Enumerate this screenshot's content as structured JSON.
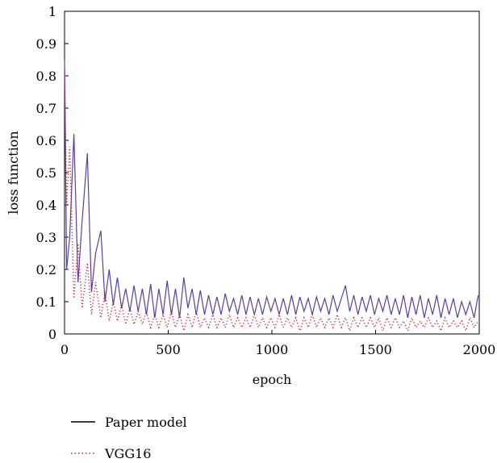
{
  "chart_data": {
    "type": "line",
    "xlabel": "epoch",
    "ylabel": "loss function",
    "xlim": [
      0,
      2000
    ],
    "ylim": [
      0,
      1
    ],
    "x_ticks": [
      "0",
      "500",
      "1000",
      "1500",
      "2000"
    ],
    "y_ticks": [
      "0",
      "0.1",
      "0.2",
      "0.3",
      "0.4",
      "0.5",
      "0.6",
      "0.7",
      "0.8",
      "0.9",
      "1"
    ],
    "grid": false,
    "legend_position": "bottom-left",
    "series": [
      {
        "name": "Paper model",
        "color": "#5b3f9a",
        "style": "solid",
        "x": [
          0,
          10,
          25,
          45,
          65,
          85,
          110,
          130,
          150,
          175,
          195,
          215,
          235,
          255,
          275,
          295,
          315,
          335,
          355,
          375,
          395,
          415,
          435,
          455,
          475,
          495,
          515,
          535,
          555,
          575,
          595,
          615,
          635,
          655,
          675,
          695,
          715,
          735,
          755,
          775,
          795,
          815,
          835,
          855,
          875,
          895,
          915,
          935,
          955,
          975,
          995,
          1015,
          1035,
          1055,
          1075,
          1095,
          1115,
          1135,
          1155,
          1175,
          1195,
          1215,
          1235,
          1255,
          1275,
          1295,
          1315,
          1335,
          1355,
          1375,
          1395,
          1415,
          1435,
          1455,
          1475,
          1495,
          1515,
          1535,
          1555,
          1575,
          1595,
          1615,
          1635,
          1655,
          1675,
          1695,
          1715,
          1735,
          1755,
          1775,
          1795,
          1815,
          1835,
          1855,
          1875,
          1895,
          1915,
          1935,
          1955,
          1975,
          1995
        ],
        "values": [
          0.85,
          0.2,
          0.3,
          0.62,
          0.16,
          0.35,
          0.56,
          0.13,
          0.25,
          0.32,
          0.1,
          0.2,
          0.09,
          0.175,
          0.08,
          0.14,
          0.07,
          0.15,
          0.07,
          0.14,
          0.06,
          0.155,
          0.05,
          0.14,
          0.06,
          0.165,
          0.06,
          0.14,
          0.05,
          0.175,
          0.08,
          0.14,
          0.06,
          0.135,
          0.06,
          0.12,
          0.06,
          0.115,
          0.06,
          0.125,
          0.07,
          0.11,
          0.06,
          0.12,
          0.06,
          0.115,
          0.06,
          0.11,
          0.06,
          0.115,
          0.07,
          0.11,
          0.06,
          0.11,
          0.06,
          0.12,
          0.06,
          0.115,
          0.07,
          0.11,
          0.06,
          0.115,
          0.07,
          0.11,
          0.06,
          0.12,
          0.07,
          0.11,
          0.15,
          0.07,
          0.12,
          0.06,
          0.115,
          0.07,
          0.12,
          0.06,
          0.11,
          0.07,
          0.12,
          0.06,
          0.11,
          0.06,
          0.12,
          0.05,
          0.115,
          0.06,
          0.12,
          0.05,
          0.11,
          0.06,
          0.12,
          0.05,
          0.11,
          0.06,
          0.11,
          0.05,
          0.1,
          0.06,
          0.1,
          0.05,
          0.12
        ]
      },
      {
        "name": "VGG16",
        "color": "#c0273a",
        "style": "dotted",
        "x": [
          0,
          10,
          25,
          45,
          65,
          85,
          110,
          130,
          150,
          175,
          195,
          215,
          235,
          255,
          275,
          295,
          315,
          335,
          355,
          375,
          395,
          415,
          435,
          455,
          475,
          495,
          515,
          535,
          555,
          575,
          595,
          615,
          635,
          655,
          675,
          695,
          715,
          735,
          755,
          775,
          795,
          815,
          835,
          855,
          875,
          895,
          915,
          935,
          955,
          975,
          995,
          1015,
          1035,
          1055,
          1075,
          1095,
          1115,
          1135,
          1155,
          1175,
          1195,
          1215,
          1235,
          1255,
          1275,
          1295,
          1315,
          1335,
          1355,
          1375,
          1395,
          1415,
          1435,
          1455,
          1475,
          1495,
          1515,
          1535,
          1555,
          1575,
          1595,
          1615,
          1635,
          1655,
          1675,
          1695,
          1715,
          1735,
          1755,
          1775,
          1795,
          1815,
          1835,
          1855,
          1875,
          1895,
          1915,
          1935,
          1955,
          1975,
          1995
        ],
        "values": [
          0.82,
          0.4,
          0.58,
          0.11,
          0.28,
          0.08,
          0.22,
          0.06,
          0.16,
          0.05,
          0.13,
          0.04,
          0.1,
          0.04,
          0.09,
          0.03,
          0.08,
          0.03,
          0.07,
          0.03,
          0.07,
          0.02,
          0.06,
          0.02,
          0.06,
          0.02,
          0.07,
          0.02,
          0.06,
          0.01,
          0.06,
          0.02,
          0.07,
          0.02,
          0.05,
          0.02,
          0.06,
          0.02,
          0.05,
          0.02,
          0.06,
          0.02,
          0.05,
          0.02,
          0.05,
          0.02,
          0.06,
          0.02,
          0.05,
          0.02,
          0.05,
          0.02,
          0.06,
          0.02,
          0.05,
          0.02,
          0.05,
          0.01,
          0.05,
          0.02,
          0.06,
          0.02,
          0.05,
          0.02,
          0.05,
          0.02,
          0.06,
          0.02,
          0.05,
          0.01,
          0.05,
          0.02,
          0.05,
          0.02,
          0.05,
          0.02,
          0.05,
          0.01,
          0.05,
          0.02,
          0.05,
          0.02,
          0.04,
          0.01,
          0.05,
          0.02,
          0.04,
          0.02,
          0.05,
          0.02,
          0.04,
          0.01,
          0.05,
          0.02,
          0.04,
          0.02,
          0.04,
          0.01,
          0.05,
          0.02,
          0.04
        ]
      }
    ]
  }
}
